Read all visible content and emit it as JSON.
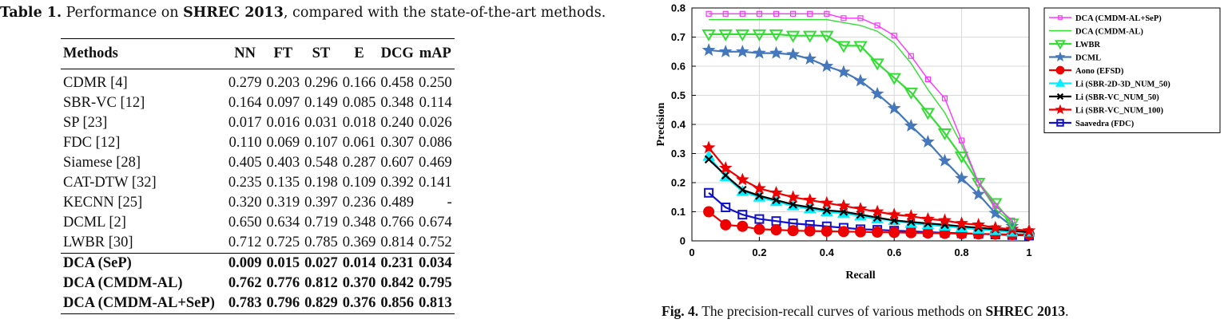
{
  "table_caption": {
    "label": "Table 1.",
    "text_prefix": " Performance on ",
    "dataset": "SHREC 2013",
    "text_suffix": ", compared with the state-of-the-art methods."
  },
  "table": {
    "headers": [
      "Methods",
      "NN",
      "FT",
      "ST",
      "E",
      "DCG",
      "mAP"
    ],
    "rows": [
      {
        "method": "CDMR [4]",
        "values": [
          "0.279",
          "0.203",
          "0.296",
          "0.166",
          "0.458",
          "0.250"
        ]
      },
      {
        "method": "SBR-VC [12]",
        "values": [
          "0.164",
          "0.097",
          "0.149",
          "0.085",
          "0.348",
          "0.114"
        ]
      },
      {
        "method": "SP [23]",
        "values": [
          "0.017",
          "0.016",
          "0.031",
          "0.018",
          "0.240",
          "0.026"
        ]
      },
      {
        "method": "FDC [12]",
        "values": [
          "0.110",
          "0.069",
          "0.107",
          "0.061",
          "0.307",
          "0.086"
        ]
      },
      {
        "method": "Siamese [28]",
        "values": [
          "0.405",
          "0.403",
          "0.548",
          "0.287",
          "0.607",
          "0.469"
        ]
      },
      {
        "method": "CAT-DTW [32]",
        "values": [
          "0.235",
          "0.135",
          "0.198",
          "0.109",
          "0.392",
          "0.141"
        ]
      },
      {
        "method": "KECNN [25]",
        "values": [
          "0.320",
          "0.319",
          "0.397",
          "0.236",
          "0.489",
          "-"
        ]
      },
      {
        "method": "DCML [2]",
        "values": [
          "0.650",
          "0.634",
          "0.719",
          "0.348",
          "0.766",
          "0.674"
        ]
      },
      {
        "method": "LWBR [30]",
        "values": [
          "0.712",
          "0.725",
          "0.785",
          "0.369",
          "0.814",
          "0.752"
        ]
      }
    ],
    "ours": [
      {
        "method": "DCA (SeP)",
        "values": [
          "0.009",
          "0.015",
          "0.027",
          "0.014",
          "0.231",
          "0.034"
        ],
        "bold": false
      },
      {
        "method": "DCA (CMDM-AL)",
        "values": [
          "0.762",
          "0.776",
          "0.812",
          "0.370",
          "0.842",
          "0.795"
        ],
        "bold": false
      },
      {
        "method": "DCA (CMDM-AL+SeP)",
        "values": [
          "0.783",
          "0.796",
          "0.829",
          "0.376",
          "0.856",
          "0.813"
        ],
        "bold": true
      }
    ]
  },
  "figure_caption": {
    "label": "Fig. 4.",
    "text_prefix": " The precision-recall curves of various methods on ",
    "dataset": "SHREC 2013",
    "text_suffix": "."
  },
  "chart_data": {
    "type": "line",
    "xlabel": "Recall",
    "ylabel": "Precision",
    "xlim": [
      0,
      1
    ],
    "ylim": [
      0,
      0.8
    ],
    "xticks": [
      "0",
      "0.2",
      "0.4",
      "0.6",
      "0.8",
      "1"
    ],
    "yticks": [
      "0",
      "0.1",
      "0.2",
      "0.3",
      "0.4",
      "0.5",
      "0.6",
      "0.7",
      "0.8"
    ],
    "grid": true,
    "legend_position": "top-right",
    "series": [
      {
        "name": "DCA (CMDM-AL+SeP)",
        "color": "#ff33ff",
        "marker": "square-small",
        "x": [
          0.05,
          0.1,
          0.15,
          0.2,
          0.25,
          0.3,
          0.35,
          0.4,
          0.45,
          0.5,
          0.55,
          0.6,
          0.65,
          0.7,
          0.75,
          0.8,
          0.85,
          0.9,
          0.95
        ],
        "y": [
          0.78,
          0.78,
          0.78,
          0.78,
          0.78,
          0.78,
          0.78,
          0.78,
          0.765,
          0.765,
          0.74,
          0.705,
          0.635,
          0.555,
          0.49,
          0.345,
          0.2,
          0.12,
          0.07
        ]
      },
      {
        "name": "DCA (CMDM-AL)",
        "color": "#33dd33",
        "marker": "none",
        "x": [
          0.05,
          0.1,
          0.15,
          0.2,
          0.25,
          0.3,
          0.35,
          0.4,
          0.45,
          0.5,
          0.55,
          0.6,
          0.65,
          0.7,
          0.75,
          0.8,
          0.85,
          0.9,
          0.95
        ],
        "y": [
          0.76,
          0.76,
          0.76,
          0.76,
          0.76,
          0.76,
          0.76,
          0.76,
          0.75,
          0.74,
          0.72,
          0.68,
          0.61,
          0.52,
          0.44,
          0.33,
          0.2,
          0.11,
          0.06
        ]
      },
      {
        "name": "LWBR",
        "color": "#33dd33",
        "marker": "triangle-down",
        "x": [
          0.05,
          0.1,
          0.15,
          0.2,
          0.25,
          0.3,
          0.35,
          0.4,
          0.45,
          0.5,
          0.55,
          0.6,
          0.65,
          0.7,
          0.75,
          0.8,
          0.85,
          0.9,
          0.95
        ],
        "y": [
          0.71,
          0.71,
          0.71,
          0.71,
          0.71,
          0.705,
          0.705,
          0.705,
          0.67,
          0.67,
          0.61,
          0.56,
          0.51,
          0.44,
          0.37,
          0.29,
          0.2,
          0.13,
          0.06
        ]
      },
      {
        "name": "DCML",
        "color": "#4477bb",
        "marker": "star",
        "x": [
          0.05,
          0.1,
          0.15,
          0.2,
          0.25,
          0.3,
          0.35,
          0.4,
          0.45,
          0.5,
          0.55,
          0.6,
          0.65,
          0.7,
          0.75,
          0.8,
          0.85,
          0.9,
          0.95
        ],
        "y": [
          0.655,
          0.65,
          0.65,
          0.645,
          0.645,
          0.64,
          0.625,
          0.6,
          0.58,
          0.55,
          0.505,
          0.455,
          0.395,
          0.34,
          0.275,
          0.215,
          0.16,
          0.095,
          0.05
        ]
      },
      {
        "name": "Aono (EFSD)",
        "color": "#ee0000",
        "marker": "circle",
        "x": [
          0.05,
          0.1,
          0.15,
          0.2,
          0.25,
          0.3,
          0.35,
          0.4,
          0.45,
          0.5,
          0.55,
          0.6,
          0.65,
          0.7,
          0.75,
          0.8,
          0.85,
          0.9,
          0.95,
          1.0
        ],
        "y": [
          0.1,
          0.055,
          0.05,
          0.04,
          0.038,
          0.035,
          0.034,
          0.033,
          0.032,
          0.031,
          0.03,
          0.029,
          0.028,
          0.027,
          0.026,
          0.025,
          0.024,
          0.023,
          0.022,
          0.022
        ]
      },
      {
        "name": "Li (SBR-2D-3D_NUM_50)",
        "color": "#00eeff",
        "marker": "triangle-up",
        "x": [
          0.05,
          0.1,
          0.15,
          0.2,
          0.25,
          0.3,
          0.35,
          0.4,
          0.45,
          0.5,
          0.55,
          0.6,
          0.65,
          0.7,
          0.75,
          0.8,
          0.85,
          0.9,
          0.95,
          1.0
        ],
        "y": [
          0.29,
          0.22,
          0.17,
          0.15,
          0.135,
          0.12,
          0.11,
          0.1,
          0.095,
          0.085,
          0.075,
          0.07,
          0.06,
          0.055,
          0.05,
          0.045,
          0.04,
          0.035,
          0.03,
          0.03
        ]
      },
      {
        "name": "Li (SBR-VC_NUM_50)",
        "color": "#000000",
        "marker": "x",
        "x": [
          0.05,
          0.1,
          0.15,
          0.2,
          0.25,
          0.3,
          0.35,
          0.4,
          0.45,
          0.5,
          0.55,
          0.6,
          0.65,
          0.7,
          0.75,
          0.8,
          0.85,
          0.9,
          0.95,
          1.0
        ],
        "y": [
          0.28,
          0.225,
          0.175,
          0.155,
          0.14,
          0.125,
          0.115,
          0.105,
          0.1,
          0.09,
          0.08,
          0.07,
          0.065,
          0.06,
          0.055,
          0.05,
          0.045,
          0.04,
          0.035,
          0.03
        ]
      },
      {
        "name": "Li (SBR-VC_NUM_100)",
        "color": "#ee0000",
        "marker": "star",
        "x": [
          0.05,
          0.1,
          0.15,
          0.2,
          0.25,
          0.3,
          0.35,
          0.4,
          0.45,
          0.5,
          0.55,
          0.6,
          0.65,
          0.7,
          0.75,
          0.8,
          0.85,
          0.9,
          0.95,
          1.0
        ],
        "y": [
          0.32,
          0.25,
          0.21,
          0.18,
          0.165,
          0.15,
          0.14,
          0.13,
          0.12,
          0.11,
          0.1,
          0.09,
          0.085,
          0.075,
          0.07,
          0.06,
          0.055,
          0.045,
          0.04,
          0.035
        ]
      },
      {
        "name": "Saavedra (FDC)",
        "color": "#1111cc",
        "marker": "square",
        "x": [
          0.05,
          0.1,
          0.15,
          0.2,
          0.25,
          0.3,
          0.35,
          0.4,
          0.45,
          0.5,
          0.55,
          0.6,
          0.65,
          0.7,
          0.75,
          0.8,
          0.85,
          0.9,
          0.95,
          1.0
        ],
        "y": [
          0.165,
          0.115,
          0.09,
          0.075,
          0.068,
          0.06,
          0.055,
          0.05,
          0.045,
          0.04,
          0.038,
          0.035,
          0.033,
          0.03,
          0.028,
          0.026,
          0.024,
          0.022,
          0.02,
          0.018
        ]
      }
    ]
  }
}
